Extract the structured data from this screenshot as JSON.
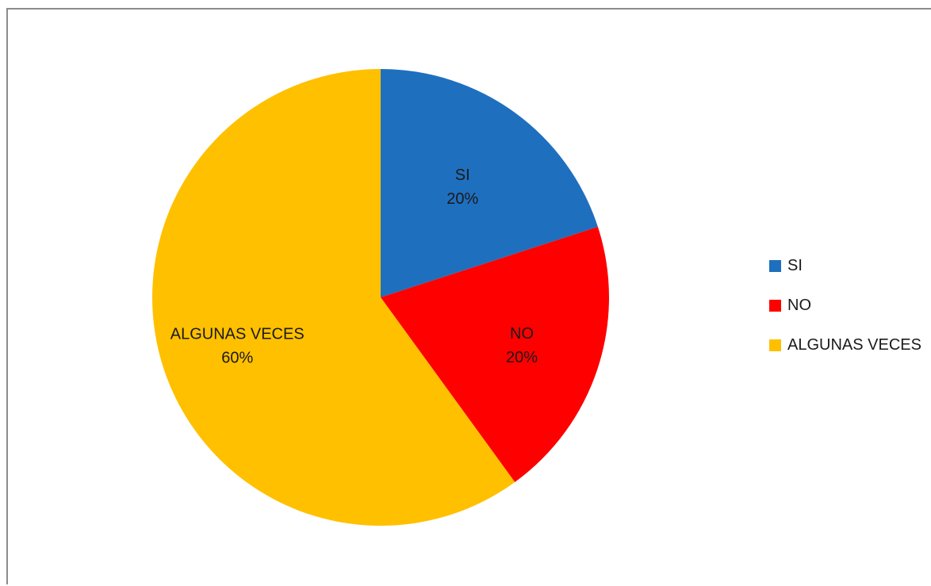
{
  "chart_data": {
    "type": "pie",
    "categories": [
      "SI",
      "NO",
      "ALGUNAS VECES"
    ],
    "values": [
      20,
      20,
      60
    ],
    "slice_labels": [
      {
        "category": "SI",
        "percent": "20%"
      },
      {
        "category": "NO",
        "percent": "20%"
      },
      {
        "category": "ALGUNAS VECES",
        "percent": "60%"
      }
    ],
    "colors": [
      "#1f6fbf",
      "#ff0000",
      "#ffc000"
    ],
    "legend_position": "right",
    "start_angle": "12 o'clock, clockwise"
  },
  "legend": {
    "items": [
      {
        "label": "SI",
        "color": "#1f6fbf"
      },
      {
        "label": "NO",
        "color": "#ff0000"
      },
      {
        "label": "ALGUNAS VECES",
        "color": "#ffc000"
      }
    ]
  }
}
